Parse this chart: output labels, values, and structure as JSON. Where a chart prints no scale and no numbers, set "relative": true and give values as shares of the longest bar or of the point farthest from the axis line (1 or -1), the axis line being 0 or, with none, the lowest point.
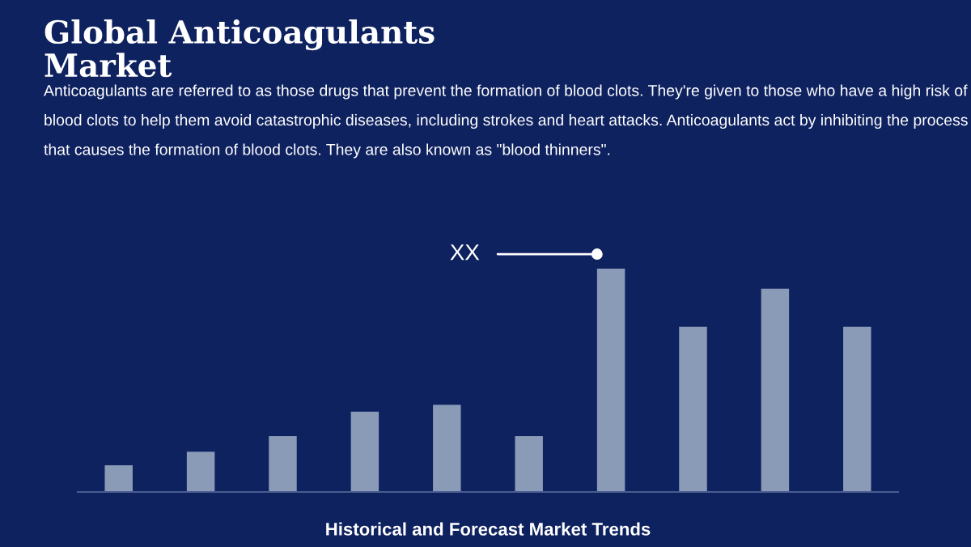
{
  "chart_data": {
    "type": "bar",
    "title": "Global Anticoagulants\nMarket",
    "subtitle": "Anticoagulants are referred to as those drugs that prevent the formation of blood clots. They're given to those who have a high risk of blood clots to help them avoid catastrophic diseases, including strokes and heart attacks. Anticoagulants act by inhibiting the process that causes the formation of blood clots. They are also known as \"blood thinners\".",
    "xlabel": "Historical and Forecast Market Trends",
    "categories": [
      null,
      null,
      null,
      null,
      null,
      null,
      null,
      null,
      null,
      null
    ],
    "values": [
      0.12,
      0.18,
      0.25,
      0.36,
      0.39,
      0.25,
      1,
      0.74,
      0.91,
      0.74
    ],
    "color": "#8a9bb8",
    "relative": true,
    "annotations": [
      "XX"
    ],
    "grid": false,
    "legend": false
  }
}
